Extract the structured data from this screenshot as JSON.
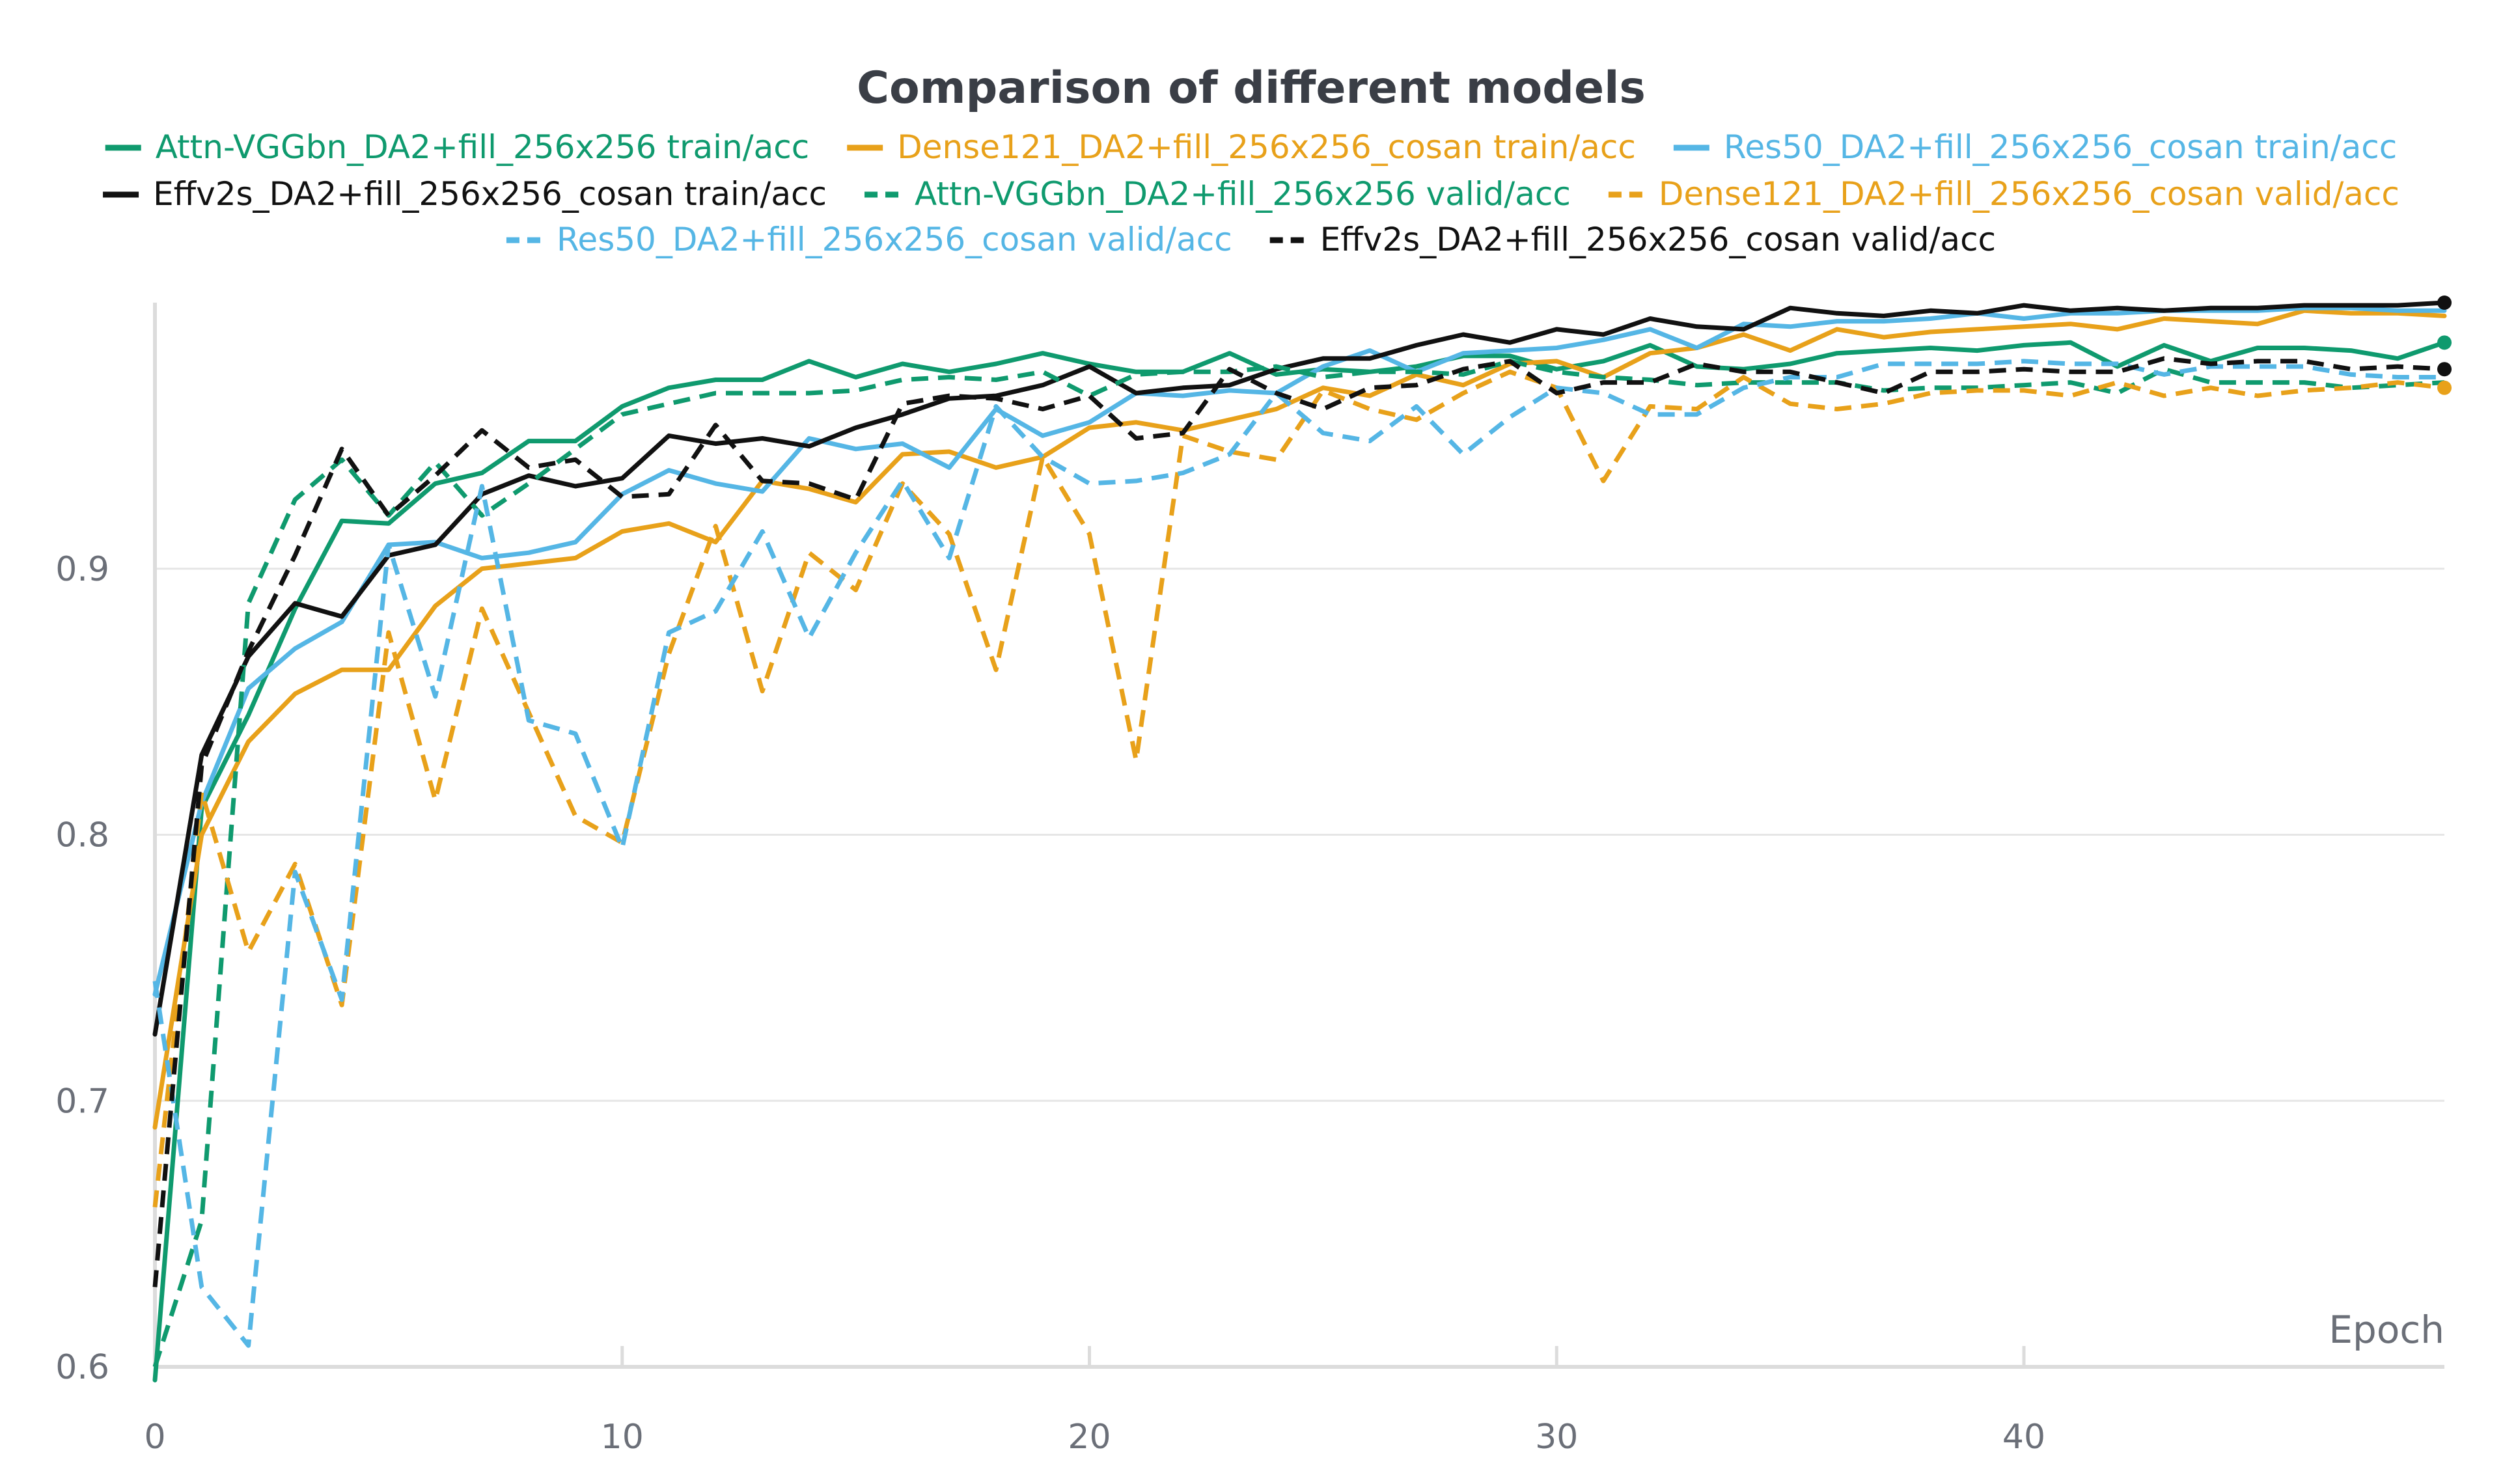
{
  "chart_data": {
    "type": "line",
    "title": "Comparison of different models",
    "xlabel": "Epoch",
    "ylabel": "",
    "xlim": [
      0,
      49
    ],
    "ylim": [
      0.6,
      1.0
    ],
    "x_ticks": [
      0,
      10,
      20,
      30,
      40
    ],
    "y_ticks": [
      0.6,
      0.7,
      0.8,
      0.9
    ],
    "grid": "horizontal",
    "legend_position": "top",
    "series": [
      {
        "name": "Attn-VGGbn_DA2+fill_256x256 train/acc",
        "color": "#0f9a6e",
        "dash": "solid",
        "end_marker": true,
        "values": [
          0.595,
          0.81,
          0.845,
          0.885,
          0.918,
          0.917,
          0.932,
          0.936,
          0.948,
          0.948,
          0.961,
          0.968,
          0.971,
          0.971,
          0.978,
          0.972,
          0.977,
          0.974,
          0.977,
          0.981,
          0.977,
          0.974,
          0.974,
          0.981,
          0.973,
          0.975,
          0.974,
          0.976,
          0.98,
          0.98,
          0.975,
          0.978,
          0.984,
          0.976,
          0.975,
          0.977,
          0.981,
          0.982,
          0.983,
          0.982,
          0.984,
          0.985,
          0.976,
          0.984,
          0.978,
          0.983,
          0.983,
          0.982,
          0.979,
          0.985
        ]
      },
      {
        "name": "Dense121_DA2+fill_256x256_cosan train/acc",
        "color": "#e8a11a",
        "dash": "solid",
        "end_marker": false,
        "values": [
          0.69,
          0.8,
          0.835,
          0.853,
          0.862,
          0.862,
          0.886,
          0.9,
          0.902,
          0.904,
          0.914,
          0.917,
          0.91,
          0.933,
          0.93,
          0.925,
          0.943,
          0.944,
          0.938,
          0.942,
          0.953,
          0.955,
          0.952,
          0.956,
          0.96,
          0.968,
          0.965,
          0.973,
          0.969,
          0.977,
          0.978,
          0.972,
          0.981,
          0.983,
          0.988,
          0.982,
          0.99,
          0.987,
          0.989,
          0.99,
          0.991,
          0.992,
          0.99,
          0.994,
          0.993,
          0.992,
          0.997,
          0.996,
          0.996,
          0.995
        ]
      },
      {
        "name": "Res50_DA2+fill_256x256_cosan train/acc",
        "color": "#55b6e5",
        "dash": "solid",
        "end_marker": false,
        "values": [
          0.74,
          0.812,
          0.855,
          0.87,
          0.88,
          0.909,
          0.91,
          0.904,
          0.906,
          0.91,
          0.928,
          0.937,
          0.932,
          0.929,
          0.949,
          0.945,
          0.947,
          0.938,
          0.96,
          0.95,
          0.955,
          0.966,
          0.965,
          0.967,
          0.966,
          0.976,
          0.982,
          0.974,
          0.981,
          0.982,
          0.983,
          0.986,
          0.99,
          0.983,
          0.992,
          0.991,
          0.993,
          0.993,
          0.994,
          0.996,
          0.994,
          0.996,
          0.996,
          0.997,
          0.997,
          0.997,
          0.998,
          0.998,
          0.997,
          0.997
        ]
      },
      {
        "name": "Effv2s_DA2+fill_256x256_cosan train/acc",
        "color": "#111111",
        "dash": "solid",
        "end_marker": true,
        "values": [
          0.725,
          0.83,
          0.867,
          0.887,
          0.882,
          0.905,
          0.909,
          0.928,
          0.935,
          0.931,
          0.934,
          0.95,
          0.947,
          0.949,
          0.946,
          0.953,
          0.958,
          0.964,
          0.965,
          0.969,
          0.976,
          0.966,
          0.968,
          0.969,
          0.975,
          0.979,
          0.979,
          0.984,
          0.988,
          0.985,
          0.99,
          0.988,
          0.994,
          0.991,
          0.99,
          0.998,
          0.996,
          0.995,
          0.997,
          0.996,
          0.999,
          0.997,
          0.998,
          0.997,
          0.998,
          0.998,
          0.999,
          0.999,
          0.999,
          1.0
        ]
      },
      {
        "name": "Attn-VGGbn_DA2+fill_256x256 valid/acc",
        "color": "#0f9a6e",
        "dash": "dashed",
        "end_marker": false,
        "values": [
          0.6,
          0.655,
          0.887,
          0.926,
          0.941,
          0.92,
          0.94,
          0.92,
          0.932,
          0.945,
          0.958,
          0.962,
          0.966,
          0.966,
          0.966,
          0.967,
          0.971,
          0.972,
          0.971,
          0.974,
          0.965,
          0.973,
          0.974,
          0.974,
          0.976,
          0.972,
          0.974,
          0.974,
          0.973,
          0.978,
          0.974,
          0.972,
          0.971,
          0.969,
          0.97,
          0.97,
          0.97,
          0.967,
          0.968,
          0.968,
          0.969,
          0.97,
          0.966,
          0.975,
          0.97,
          0.97,
          0.97,
          0.968,
          0.969,
          0.97
        ]
      },
      {
        "name": "Dense121_DA2+fill_256x256_cosan valid/acc",
        "color": "#e8a11a",
        "dash": "dashed",
        "end_marker": true,
        "values": [
          0.66,
          0.816,
          0.756,
          0.789,
          0.736,
          0.876,
          0.813,
          0.885,
          0.846,
          0.807,
          0.797,
          0.868,
          0.916,
          0.854,
          0.906,
          0.892,
          0.932,
          0.913,
          0.862,
          0.942,
          0.913,
          0.828,
          0.95,
          0.944,
          0.941,
          0.967,
          0.96,
          0.956,
          0.966,
          0.974,
          0.968,
          0.933,
          0.961,
          0.96,
          0.972,
          0.962,
          0.96,
          0.962,
          0.966,
          0.967,
          0.967,
          0.965,
          0.97,
          0.965,
          0.968,
          0.965,
          0.967,
          0.968,
          0.97,
          0.968
        ]
      },
      {
        "name": "Res50_DA2+fill_256x256_cosan valid/acc",
        "color": "#55b6e5",
        "dash": "dashed",
        "end_marker": false,
        "values": [
          0.745,
          0.63,
          0.608,
          0.786,
          0.738,
          0.909,
          0.852,
          0.931,
          0.843,
          0.838,
          0.795,
          0.876,
          0.884,
          0.914,
          0.874,
          0.906,
          0.933,
          0.904,
          0.961,
          0.942,
          0.932,
          0.933,
          0.936,
          0.943,
          0.966,
          0.951,
          0.948,
          0.961,
          0.943,
          0.957,
          0.968,
          0.966,
          0.958,
          0.958,
          0.968,
          0.972,
          0.972,
          0.977,
          0.977,
          0.977,
          0.978,
          0.977,
          0.977,
          0.973,
          0.976,
          0.976,
          0.976,
          0.973,
          0.972,
          0.972
        ]
      },
      {
        "name": "Effv2s_DA2+fill_256x256_cosan valid/acc",
        "color": "#111111",
        "dash": "dashed",
        "end_marker": true,
        "values": [
          0.63,
          0.826,
          0.869,
          0.905,
          0.945,
          0.92,
          0.935,
          0.952,
          0.938,
          0.941,
          0.927,
          0.928,
          0.954,
          0.933,
          0.932,
          0.926,
          0.962,
          0.965,
          0.964,
          0.96,
          0.965,
          0.949,
          0.951,
          0.975,
          0.966,
          0.96,
          0.968,
          0.969,
          0.975,
          0.978,
          0.966,
          0.97,
          0.97,
          0.977,
          0.974,
          0.974,
          0.97,
          0.966,
          0.974,
          0.974,
          0.975,
          0.974,
          0.974,
          0.979,
          0.977,
          0.978,
          0.978,
          0.975,
          0.976,
          0.975
        ]
      }
    ]
  }
}
